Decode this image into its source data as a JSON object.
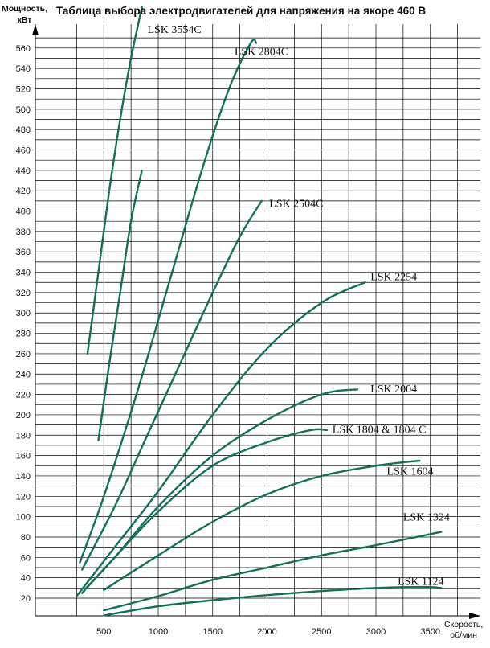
{
  "title": "Таблица выбора электродвигателей для напряжения на якоре 460 В",
  "y_axis": {
    "line1": "Мощность,",
    "line2": "кВт"
  },
  "x_axis": {
    "line1": "Скорость,",
    "line2": "об/мин"
  },
  "colors": {
    "curve": "#13705a",
    "grid": "#000000",
    "text": "#111111"
  },
  "chart_data": {
    "type": "line",
    "title": "Таблица выбора электродвигателей для напряжения на якоре 460 В",
    "xlabel": "Скорость, об/мин",
    "ylabel": "Мощность, кВт",
    "xlim": [
      0,
      3850
    ],
    "ylim": [
      20,
      580
    ],
    "x_ticks": [
      500,
      1000,
      1500,
      2000,
      2500,
      3000,
      3500
    ],
    "y_ticks": [
      20,
      40,
      60,
      80,
      100,
      120,
      140,
      160,
      180,
      200,
      220,
      240,
      260,
      280,
      300,
      320,
      340,
      360,
      380,
      400,
      420,
      440,
      460,
      480,
      500,
      520,
      540,
      560
    ],
    "grid": true,
    "legend": "none",
    "series": [
      {
        "name": "LSK 3554C",
        "x": [
          350,
          450,
          550,
          650,
          750,
          850
        ],
        "y": [
          260,
          340,
          420,
          490,
          550,
          600
        ]
      },
      {
        "name": "LSK 3554C",
        "x": [
          450,
          550,
          650,
          750,
          850
        ],
        "y": [
          175,
          250,
          320,
          390,
          440
        ]
      },
      {
        "name": "LSK 2804C",
        "x": [
          280,
          500,
          800,
          1100,
          1400,
          1650,
          1850,
          1900
        ],
        "y": [
          55,
          120,
          220,
          330,
          440,
          520,
          565,
          565
        ]
      },
      {
        "name": "LSK 2504C",
        "x": [
          300,
          600,
          900,
          1200,
          1500,
          1750,
          1950
        ],
        "y": [
          48,
          110,
          180,
          250,
          320,
          375,
          410
        ]
      },
      {
        "name": "LSK 2254",
        "x": [
          250,
          600,
          1000,
          1500,
          2000,
          2500,
          2900
        ],
        "y": [
          22,
          70,
          125,
          200,
          265,
          310,
          330
        ]
      },
      {
        "name": "LSK 2004",
        "x": [
          320,
          600,
          1000,
          1500,
          2000,
          2500,
          2830
        ],
        "y": [
          28,
          60,
          110,
          160,
          195,
          220,
          225
        ]
      },
      {
        "name": "LSK 1804 & 1804 C",
        "x": [
          300,
          600,
          1000,
          1500,
          2000,
          2400,
          2550
        ],
        "y": [
          25,
          60,
          105,
          150,
          173,
          185,
          185
        ]
      },
      {
        "name": "LSK 1604",
        "x": [
          500,
          1000,
          1500,
          2000,
          2500,
          3000,
          3400
        ],
        "y": [
          28,
          62,
          95,
          122,
          140,
          150,
          155
        ]
      },
      {
        "name": "LSK 1324",
        "x": [
          500,
          1000,
          1500,
          2000,
          2500,
          3000,
          3600
        ],
        "y": [
          8,
          22,
          38,
          50,
          62,
          72,
          85
        ]
      },
      {
        "name": "LSK 1124",
        "x": [
          500,
          1000,
          1500,
          2000,
          2500,
          3000,
          3450,
          3600
        ],
        "y": [
          3,
          12,
          18,
          23,
          27,
          30,
          31,
          30
        ]
      }
    ],
    "labels": [
      {
        "text": "LSK 3554C",
        "x": 900,
        "y": 575
      },
      {
        "text": "LSK 2804C",
        "x": 1700,
        "y": 553
      },
      {
        "text": "LSK 2504C",
        "x": 2020,
        "y": 404
      },
      {
        "text": "LSK 2254",
        "x": 2950,
        "y": 332
      },
      {
        "text": "LSK 2004",
        "x": 2950,
        "y": 222
      },
      {
        "text": "LSK 1804 & 1804 C",
        "x": 2600,
        "y": 182
      },
      {
        "text": "LSK 1604",
        "x": 3100,
        "y": 141
      },
      {
        "text": "LSK 1324",
        "x": 3250,
        "y": 96
      },
      {
        "text": "LSK 1124",
        "x": 3200,
        "y": 33
      }
    ]
  }
}
